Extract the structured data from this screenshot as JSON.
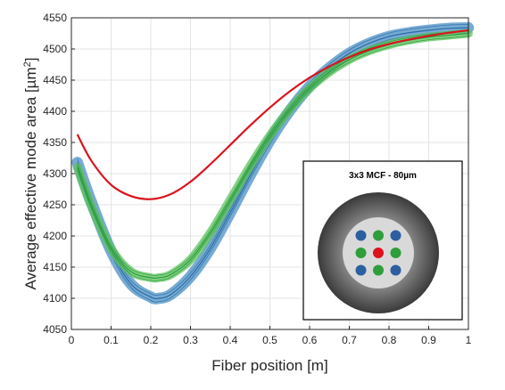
{
  "chart_data": {
    "type": "line",
    "title": "",
    "xlabel": "Fiber position [m]",
    "ylabel_main": "Average effective mode area [µm",
    "ylabel_sup": "2",
    "ylabel_close": "]",
    "xlim": [
      0,
      1
    ],
    "ylim": [
      4050,
      4550
    ],
    "xticks": [
      "0",
      "0.1",
      "0.2",
      "0.3",
      "0.4",
      "0.5",
      "0.6",
      "0.7",
      "0.8",
      "0.9",
      "1"
    ],
    "yticks": [
      "4050",
      "4100",
      "4150",
      "4200",
      "4250",
      "4300",
      "4350",
      "4400",
      "4450",
      "4500",
      "4550"
    ],
    "grid": true,
    "series": [
      {
        "color": "#2f6fa8",
        "band_color": "#4a8fc4",
        "band_halfwidth": 9,
        "x": [
          0.015,
          0.05,
          0.1,
          0.15,
          0.2,
          0.22,
          0.25,
          0.3,
          0.35,
          0.4,
          0.45,
          0.5,
          0.55,
          0.6,
          0.65,
          0.7,
          0.75,
          0.8,
          0.85,
          0.9,
          0.95,
          1.0
        ],
        "y": [
          4318,
          4255,
          4176,
          4123,
          4102,
          4100,
          4106,
          4135,
          4180,
          4237,
          4297,
          4353,
          4401,
          4440,
          4470,
          4493,
          4509,
          4520,
          4526,
          4530,
          4533,
          4534
        ]
      },
      {
        "color": "#2e9e3a",
        "band_color": "#5cc25e",
        "band_halfwidth": 7,
        "x": [
          0.015,
          0.05,
          0.1,
          0.15,
          0.2,
          0.22,
          0.25,
          0.3,
          0.35,
          0.4,
          0.45,
          0.5,
          0.55,
          0.6,
          0.65,
          0.7,
          0.75,
          0.8,
          0.85,
          0.9,
          0.95,
          1.0
        ],
        "y": [
          4310,
          4248,
          4180,
          4143,
          4133,
          4133,
          4138,
          4162,
          4205,
          4258,
          4312,
          4361,
          4403,
          4437,
          4463,
          4483,
          4497,
          4507,
          4514,
          4519,
          4522,
          4525
        ]
      },
      {
        "color": "#d9141e",
        "band_color": "#d9141e",
        "band_halfwidth": 0,
        "x": [
          0.015,
          0.05,
          0.1,
          0.15,
          0.2,
          0.25,
          0.3,
          0.35,
          0.4,
          0.45,
          0.5,
          0.55,
          0.6,
          0.65,
          0.7,
          0.75,
          0.8,
          0.85,
          0.9,
          0.95,
          1.0
        ],
        "y": [
          4363,
          4321,
          4282,
          4264,
          4259,
          4267,
          4287,
          4315,
          4346,
          4377,
          4406,
          4432,
          4454,
          4472,
          4487,
          4499,
          4508,
          4515,
          4521,
          4526,
          4530
        ]
      }
    ],
    "inset": {
      "title": "3x3 MCF - 80µm",
      "cores": [
        {
          "row": 0,
          "col": 0,
          "color": "#2b5fa0"
        },
        {
          "row": 0,
          "col": 1,
          "color": "#2e9e3a"
        },
        {
          "row": 0,
          "col": 2,
          "color": "#2b5fa0"
        },
        {
          "row": 1,
          "col": 0,
          "color": "#2e9e3a"
        },
        {
          "row": 1,
          "col": 1,
          "color": "#e0101a"
        },
        {
          "row": 1,
          "col": 2,
          "color": "#2e9e3a"
        },
        {
          "row": 2,
          "col": 0,
          "color": "#2b5fa0"
        },
        {
          "row": 2,
          "col": 1,
          "color": "#2e9e3a"
        },
        {
          "row": 2,
          "col": 2,
          "color": "#2b5fa0"
        }
      ]
    }
  }
}
